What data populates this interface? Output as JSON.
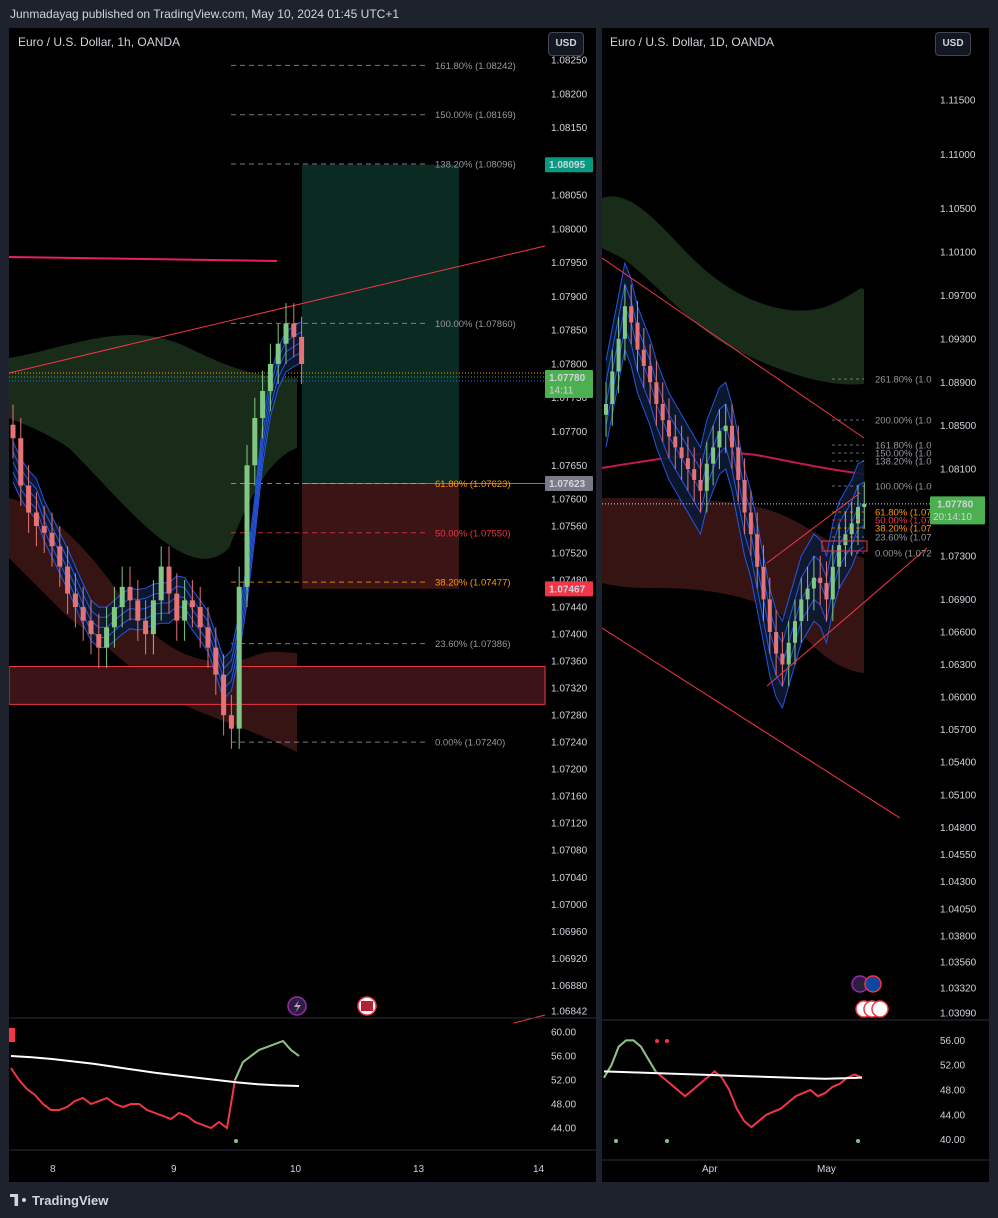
{
  "header": {
    "text": "Junmadayag published on TradingView.com, May 10, 2024 01:45 UTC+1"
  },
  "footer": {
    "brand": "TradingView"
  },
  "left_chart": {
    "title": "Euro / U.S. Dollar, 1h, OANDA",
    "currency_button": "USD",
    "price_ticks": [
      "1.08250",
      "1.08200",
      "1.08150",
      "1.08100",
      "1.08050",
      "1.08000",
      "1.07950",
      "1.07900",
      "1.07850",
      "1.07800",
      "1.07750",
      "1.07700",
      "1.07650",
      "1.07600",
      "1.07560",
      "1.07520",
      "1.07480",
      "1.07440",
      "1.07400",
      "1.07360",
      "1.07320",
      "1.07280",
      "1.07240",
      "1.07200",
      "1.07160",
      "1.07120",
      "1.07080",
      "1.07040",
      "1.07000",
      "1.06960",
      "1.06920",
      "1.06880",
      "1.06842"
    ],
    "price_tags": [
      {
        "text": "1.08095",
        "color": "#089981"
      },
      {
        "text": "1.07780",
        "sub": "14:11",
        "color": "#4caf50"
      },
      {
        "text": "1.07623",
        "color": "#787b86"
      },
      {
        "text": "1.07467",
        "color": "#f23645"
      }
    ],
    "fib_levels": [
      {
        "label": "161.80% (1.08242)",
        "color": "#9598a1"
      },
      {
        "label": "150.00% (1.08169)",
        "color": "#9598a1"
      },
      {
        "label": "138.20% (1.08096)",
        "color": "#9598a1"
      },
      {
        "label": "100.00% (1.07860)",
        "color": "#9598a1"
      },
      {
        "label": "61.80% (1.07623)",
        "color": "#ff9800"
      },
      {
        "label": "50.00% (1.07550)",
        "color": "#f23645"
      },
      {
        "label": "38.20% (1.07477)",
        "color": "#ff9800"
      },
      {
        "label": "23.60% (1.07386)",
        "color": "#9598a1"
      },
      {
        "label": "0.00% (1.07240)",
        "color": "#9598a1"
      }
    ],
    "time_ticks": [
      "8",
      "9",
      "10",
      "13",
      "14"
    ],
    "indicator_ticks": [
      "60.00",
      "56.00",
      "52.00",
      "48.00",
      "44.00"
    ],
    "event_icons": [
      "lightning-icon",
      "us-flag-icon"
    ]
  },
  "right_chart": {
    "title": "Euro / U.S. Dollar, 1D, OANDA",
    "currency_button": "USD",
    "price_ticks": [
      "1.11500",
      "1.11000",
      "1.10500",
      "1.10100",
      "1.09700",
      "1.09300",
      "1.08900",
      "1.08500",
      "1.08100",
      "1.07780",
      "1.07300",
      "1.06900",
      "1.06600",
      "1.06300",
      "1.06000",
      "1.05700",
      "1.05400",
      "1.05100",
      "1.04800",
      "1.04550",
      "1.04300",
      "1.04050",
      "1.03800",
      "1.03560",
      "1.03320",
      "1.03090"
    ],
    "price_tag": {
      "text": "1.07780",
      "sub": "20:14:10",
      "color": "#4caf50"
    },
    "fib_levels": [
      {
        "label": "261.80% (1.0",
        "color": "#9598a1"
      },
      {
        "label": "200.00% (1.0",
        "color": "#9598a1"
      },
      {
        "label": "161.80% (1.0",
        "color": "#9598a1"
      },
      {
        "label": "150.00% (1.0",
        "color": "#9598a1"
      },
      {
        "label": "138.20% (1.0",
        "color": "#9598a1"
      },
      {
        "label": "100.00% (1.0",
        "color": "#9598a1"
      },
      {
        "label": "61.80% (1.07",
        "color": "#ff9800"
      },
      {
        "label": "50.00% (1.07",
        "color": "#f23645"
      },
      {
        "label": "38.20% (1.07",
        "color": "#ff9800"
      },
      {
        "label": "23.60% (1.07",
        "color": "#9598a1"
      },
      {
        "label": "0.00% (1.072",
        "color": "#9598a1"
      }
    ],
    "time_ticks": [
      "Apr",
      "May"
    ],
    "indicator_ticks": [
      "56.00",
      "52.00",
      "48.00",
      "44.00",
      "40.00"
    ],
    "event_icons": [
      "lightning-icon",
      "eu-flag-icon",
      "us-flag-icon"
    ]
  },
  "chart_data": [
    {
      "type": "line",
      "title": "Euro / U.S. Dollar, 1h, OANDA",
      "x_ticks": [
        "8",
        "9",
        "10",
        "13",
        "14"
      ],
      "ylim": [
        1.06842,
        1.0825
      ],
      "last_price": 1.0778,
      "series": [
        {
          "values": [
            1.0769,
            1.0762,
            1.0758,
            1.0756,
            1.0755,
            1.0753,
            1.075,
            1.0746,
            1.0744,
            1.0742,
            1.074,
            1.0738,
            1.0741,
            1.0744,
            1.0747,
            1.0745,
            1.0742,
            1.074,
            1.0745,
            1.075,
            1.0746,
            1.0742,
            1.0745,
            1.0744,
            1.0741,
            1.0738,
            1.0734,
            1.0728,
            1.0726,
            1.0747,
            1.0765,
            1.0772,
            1.0776,
            1.078,
            1.0783,
            1.0786,
            1.0784,
            1.078
          ]
        }
      ],
      "fibonacci": [
        1.08242,
        1.08169,
        1.08096,
        1.0786,
        1.07623,
        1.0755,
        1.07477,
        1.07386,
        1.0724
      ],
      "position_tool": {
        "target": 1.08095,
        "entry": 1.07623,
        "stop": 1.07467
      },
      "indicator": {
        "ylim": [
          42,
          61
        ],
        "values": [
          54,
          52,
          50.5,
          49.5,
          48,
          47,
          47,
          47.5,
          48.5,
          49,
          48,
          48.5,
          49,
          48,
          47.5,
          48,
          48,
          47,
          46.5,
          46,
          45.5,
          46.5,
          46,
          45,
          44.5,
          44,
          45,
          44,
          52,
          55,
          56,
          57,
          57.5,
          58,
          58.5,
          57,
          56
        ],
        "ma": [
          56,
          55.8,
          55.5,
          55.1,
          54.7,
          54.2,
          53.7,
          53.2,
          52.8,
          52.4,
          52.0,
          51.6,
          51.3,
          51.1,
          51.0
        ]
      }
    },
    {
      "type": "line",
      "title": "Euro / U.S. Dollar, 1D, OANDA",
      "x_ticks": [
        "Apr",
        "May"
      ],
      "ylim": [
        1.0309,
        1.115
      ],
      "last_price": 1.0778,
      "series": [
        {
          "values": [
            1.087,
            1.09,
            1.093,
            1.096,
            1.0945,
            1.092,
            1.0905,
            1.089,
            1.087,
            1.0855,
            1.084,
            1.083,
            1.082,
            1.081,
            1.08,
            1.079,
            1.0815,
            1.083,
            1.0845,
            1.085,
            1.083,
            1.08,
            1.077,
            1.075,
            1.072,
            1.069,
            1.066,
            1.064,
            1.063,
            1.065,
            1.067,
            1.069,
            1.07,
            1.071,
            1.0705,
            1.069,
            1.072,
            1.074,
            1.075,
            1.076,
            1.0775,
            1.0778
          ]
        }
      ],
      "indicator": {
        "ylim": [
          38,
          58
        ],
        "values": [
          50,
          52,
          55,
          56,
          56,
          55,
          53,
          51,
          50,
          49,
          48,
          47,
          48,
          49,
          50,
          51,
          50,
          48,
          45,
          43,
          42,
          43,
          44,
          44.5,
          45,
          46,
          47,
          47.5,
          48,
          47,
          47.5,
          48.5,
          49,
          50,
          50.5,
          50
        ],
        "ma": [
          51,
          50.9,
          50.8,
          50.7,
          50.6,
          50.5,
          50.4,
          50.3,
          50.2,
          50.1,
          50.0,
          49.9,
          49.8,
          49.9,
          50.0
        ]
      }
    }
  ]
}
